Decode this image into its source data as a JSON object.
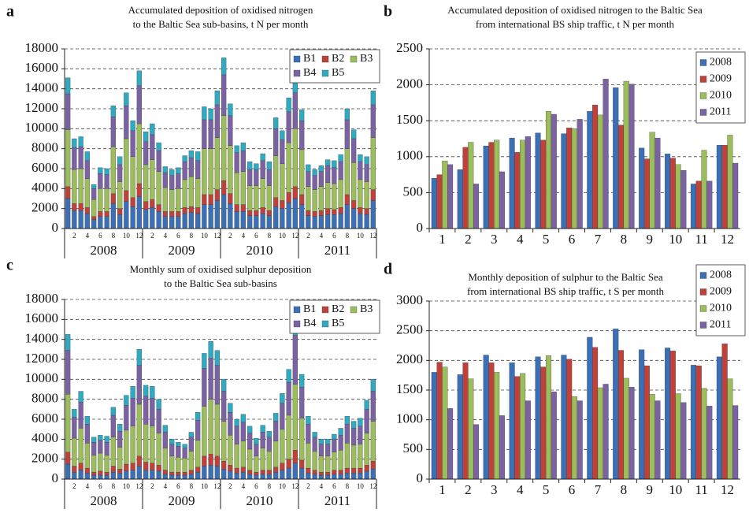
{
  "chart_data": [
    {
      "panel": "a",
      "type": "stacked_bar",
      "title": [
        "Accumulated deposition of oxidised nitrogen",
        "to the Baltic Sea sub-basins, t N per month"
      ],
      "categories": [
        null,
        "2",
        null,
        "4",
        null,
        "6",
        null,
        "8",
        null,
        "10",
        null,
        "12",
        null,
        "2",
        null,
        "4",
        null,
        "6",
        null,
        "8",
        null,
        "10",
        null,
        "12",
        null,
        "2",
        null,
        "4",
        null,
        "6",
        null,
        "8",
        null,
        "10",
        null,
        "12",
        null,
        "2",
        null,
        "4",
        null,
        "6",
        null,
        "8",
        null,
        "10",
        null,
        "12"
      ],
      "groups": [
        "2008",
        "2009",
        "2010",
        "2011"
      ],
      "ylim": [
        0,
        18000
      ],
      "yticks": [
        0,
        2000,
        4000,
        6000,
        8000,
        10000,
        12000,
        14000,
        16000,
        18000
      ],
      "grid": true,
      "legend": "upper right",
      "series": [
        {
          "name": "B1",
          "color": "#3b6fb6",
          "values": [
            3000,
            1800,
            1800,
            1500,
            900,
            1200,
            1200,
            2500,
            1400,
            2700,
            2200,
            3200,
            1900,
            2100,
            1700,
            1200,
            1200,
            1200,
            1500,
            1600,
            1500,
            2400,
            2400,
            2800,
            3400,
            2500,
            1700,
            1700,
            1300,
            1300,
            1500,
            1300,
            2200,
            2000,
            2600,
            3000,
            2400,
            1300,
            1200,
            1300,
            1400,
            1400,
            1500,
            2400,
            2000,
            1500,
            1400,
            2800
          ]
        },
        {
          "name": "B2",
          "color": "#c0413a",
          "values": [
            1200,
            700,
            700,
            600,
            300,
            500,
            500,
            1000,
            600,
            1100,
            900,
            1300,
            800,
            800,
            700,
            500,
            500,
            500,
            600,
            600,
            600,
            1000,
            1000,
            1100,
            1400,
            1000,
            700,
            700,
            500,
            500,
            600,
            500,
            900,
            800,
            1000,
            1200,
            1000,
            500,
            500,
            500,
            600,
            500,
            600,
            1000,
            800,
            600,
            600,
            1100
          ]
        },
        {
          "name": "B3",
          "color": "#9cbd5b",
          "values": [
            5700,
            3400,
            3500,
            2900,
            1700,
            2300,
            2300,
            4700,
            2700,
            5200,
            4100,
            6000,
            3700,
            4000,
            3300,
            2400,
            2200,
            2300,
            2800,
            3000,
            2900,
            4600,
            4600,
            5200,
            6500,
            4800,
            3200,
            3300,
            2500,
            2500,
            2900,
            2500,
            4200,
            3700,
            5000,
            5800,
            4500,
            2400,
            2200,
            2400,
            2600,
            2600,
            2800,
            4600,
            3800,
            2800,
            2700,
            5200
          ]
        },
        {
          "name": "B4",
          "color": "#7b62a3",
          "values": [
            3600,
            2200,
            2200,
            1800,
            1100,
            1500,
            1400,
            3000,
            1700,
            3300,
            2600,
            3800,
            2300,
            2500,
            2100,
            1500,
            1400,
            1500,
            1800,
            1900,
            1800,
            2900,
            2900,
            3300,
            4100,
            3000,
            2000,
            2100,
            1600,
            1600,
            1800,
            1600,
            2700,
            2400,
            3100,
            3600,
            2900,
            1500,
            1400,
            1500,
            1700,
            1600,
            1800,
            2900,
            2400,
            1800,
            1700,
            3300
          ]
        },
        {
          "name": "B5",
          "color": "#2eaac3",
          "values": [
            1600,
            900,
            1000,
            900,
            400,
            600,
            600,
            1100,
            800,
            1300,
            1000,
            1500,
            1000,
            1100,
            800,
            600,
            600,
            600,
            600,
            700,
            900,
            1300,
            1100,
            1400,
            1700,
            1200,
            700,
            800,
            800,
            600,
            700,
            800,
            1100,
            900,
            1400,
            1600,
            1100,
            700,
            600,
            600,
            600,
            700,
            700,
            1100,
            900,
            700,
            800,
            1400
          ]
        }
      ]
    },
    {
      "panel": "b",
      "type": "bar",
      "title": [
        "Accumulated deposition of oxidised nitrogen to the Baltic Sea",
        "from international BS ship traffic, t N per month"
      ],
      "categories": [
        "1",
        "2",
        "3",
        "4",
        "5",
        "6",
        "7",
        "8",
        "9",
        "10",
        "11",
        "12"
      ],
      "ylim": [
        0,
        2500
      ],
      "yticks": [
        0,
        500,
        1000,
        1500,
        2000,
        2500
      ],
      "grid": true,
      "legend": "upper right",
      "series": [
        {
          "name": "2008",
          "color": "#3b6fb6",
          "values": [
            700,
            820,
            1150,
            1260,
            1330,
            1320,
            1630,
            1960,
            1120,
            1040,
            620,
            1160
          ]
        },
        {
          "name": "2009",
          "color": "#c0413a",
          "values": [
            750,
            1130,
            1200,
            1060,
            1230,
            1400,
            1720,
            1440,
            970,
            980,
            660,
            1160
          ]
        },
        {
          "name": "2010",
          "color": "#9cbd5b",
          "values": [
            940,
            1200,
            1230,
            1230,
            1630,
            1390,
            1580,
            2050,
            1340,
            890,
            1090,
            1300
          ]
        },
        {
          "name": "2011",
          "color": "#7b62a3",
          "values": [
            890,
            620,
            790,
            1280,
            1590,
            1520,
            2080,
            2010,
            1260,
            810,
            660,
            910
          ]
        }
      ]
    },
    {
      "panel": "c",
      "type": "stacked_bar",
      "title": [
        "Monthly sum of oxidised sulphur deposition",
        "to the Baltic Sea sub-basins"
      ],
      "categories": [
        null,
        "2",
        null,
        "4",
        null,
        "6",
        null,
        "8",
        null,
        "10",
        null,
        "12",
        null,
        "2",
        null,
        "4",
        null,
        "6",
        null,
        "8",
        null,
        "10",
        null,
        "12",
        null,
        "2",
        null,
        "4",
        null,
        "6",
        null,
        "8",
        null,
        "10",
        null,
        "12",
        null,
        "2",
        null,
        "4",
        null,
        "6",
        null,
        "8",
        null,
        "10",
        null,
        "12"
      ],
      "groups": [
        "2008",
        "2009",
        "2010",
        "2011"
      ],
      "ylim": [
        0,
        18000
      ],
      "yticks": [
        0,
        2000,
        4000,
        6000,
        8000,
        10000,
        12000,
        14000,
        16000,
        18000
      ],
      "grid": true,
      "legend": "upper right",
      "series": [
        {
          "name": "B1",
          "color": "#3b6fb6",
          "values": [
            1500,
            700,
            900,
            600,
            400,
            400,
            400,
            700,
            600,
            800,
            900,
            1300,
            900,
            900,
            800,
            500,
            400,
            400,
            400,
            500,
            700,
            1300,
            1400,
            1300,
            1000,
            800,
            600,
            700,
            500,
            400,
            500,
            500,
            700,
            900,
            1100,
            1600,
            1100,
            600,
            500,
            400,
            400,
            500,
            500,
            600,
            600,
            600,
            800,
            1000
          ]
        },
        {
          "name": "B2",
          "color": "#c0413a",
          "values": [
            1200,
            600,
            700,
            500,
            300,
            400,
            300,
            600,
            400,
            700,
            700,
            1000,
            800,
            700,
            600,
            400,
            300,
            300,
            300,
            400,
            500,
            1000,
            1100,
            1000,
            800,
            600,
            500,
            500,
            400,
            300,
            400,
            400,
            500,
            700,
            900,
            1300,
            800,
            500,
            400,
            300,
            300,
            400,
            400,
            500,
            500,
            500,
            600,
            800
          ]
        },
        {
          "name": "B3",
          "color": "#9cbd5b",
          "values": [
            5800,
            2800,
            3500,
            2500,
            1700,
            1800,
            1700,
            2900,
            2200,
            3400,
            3700,
            5200,
            3800,
            3700,
            3200,
            2200,
            1600,
            1500,
            1400,
            1900,
            2700,
            5000,
            5500,
            5200,
            4000,
            3000,
            2400,
            2600,
            2100,
            1600,
            2200,
            1900,
            2600,
            3400,
            4400,
            6600,
            4200,
            2500,
            1900,
            1600,
            1600,
            1800,
            2000,
            2500,
            2300,
            2400,
            3200,
            4000
          ]
        },
        {
          "name": "B4",
          "color": "#7b62a3",
          "values": [
            4400,
            2100,
            2600,
            1900,
            1300,
            1300,
            1300,
            2200,
            1600,
            2500,
            2800,
            3900,
            2800,
            2800,
            2400,
            1600,
            1200,
            1100,
            1000,
            1400,
            2000,
            3800,
            4100,
            3900,
            3000,
            2300,
            1800,
            1900,
            1600,
            1200,
            1600,
            1400,
            2000,
            2600,
            3300,
            4900,
            3100,
            1900,
            1400,
            1200,
            1200,
            1300,
            1500,
            1900,
            1700,
            1800,
            2400,
            3000
          ]
        },
        {
          "name": "B5",
          "color": "#2eaac3",
          "values": [
            1600,
            800,
            1100,
            800,
            500,
            500,
            600,
            800,
            700,
            1000,
            1200,
            1600,
            1100,
            1200,
            1000,
            700,
            500,
            400,
            400,
            500,
            800,
            1500,
            1700,
            1500,
            1200,
            900,
            700,
            800,
            700,
            600,
            700,
            600,
            800,
            1000,
            1300,
            2000,
            1300,
            800,
            500,
            500,
            500,
            500,
            700,
            800,
            700,
            800,
            900,
            1200
          ]
        }
      ]
    },
    {
      "panel": "d",
      "type": "bar",
      "title": [
        "Monthly deposition of sulphur to the Baltic Sea",
        "from international BS ship traffic, t S per month"
      ],
      "categories": [
        "1",
        "2",
        "3",
        "4",
        "5",
        "6",
        "7",
        "8",
        "9",
        "10",
        "11",
        "12"
      ],
      "ylim": [
        0,
        3000
      ],
      "yticks": [
        0,
        500,
        1000,
        1500,
        2000,
        2500,
        3000
      ],
      "grid": true,
      "legend": "upper right",
      "series": [
        {
          "name": "2008",
          "color": "#3b6fb6",
          "values": [
            1800,
            1760,
            2090,
            1960,
            2060,
            2090,
            2390,
            2530,
            2180,
            2210,
            1920,
            2060
          ]
        },
        {
          "name": "2009",
          "color": "#c0413a",
          "values": [
            1970,
            1960,
            1960,
            1730,
            1890,
            2020,
            2220,
            2170,
            1910,
            2160,
            1910,
            2280
          ]
        },
        {
          "name": "2010",
          "color": "#9cbd5b",
          "values": [
            1890,
            1690,
            1800,
            1780,
            2080,
            1390,
            1540,
            1700,
            1430,
            1440,
            1530,
            1690
          ]
        },
        {
          "name": "2011",
          "color": "#7b62a3",
          "values": [
            1190,
            920,
            1070,
            1320,
            1470,
            1320,
            1600,
            1550,
            1320,
            1290,
            1230,
            1240
          ]
        }
      ]
    }
  ]
}
